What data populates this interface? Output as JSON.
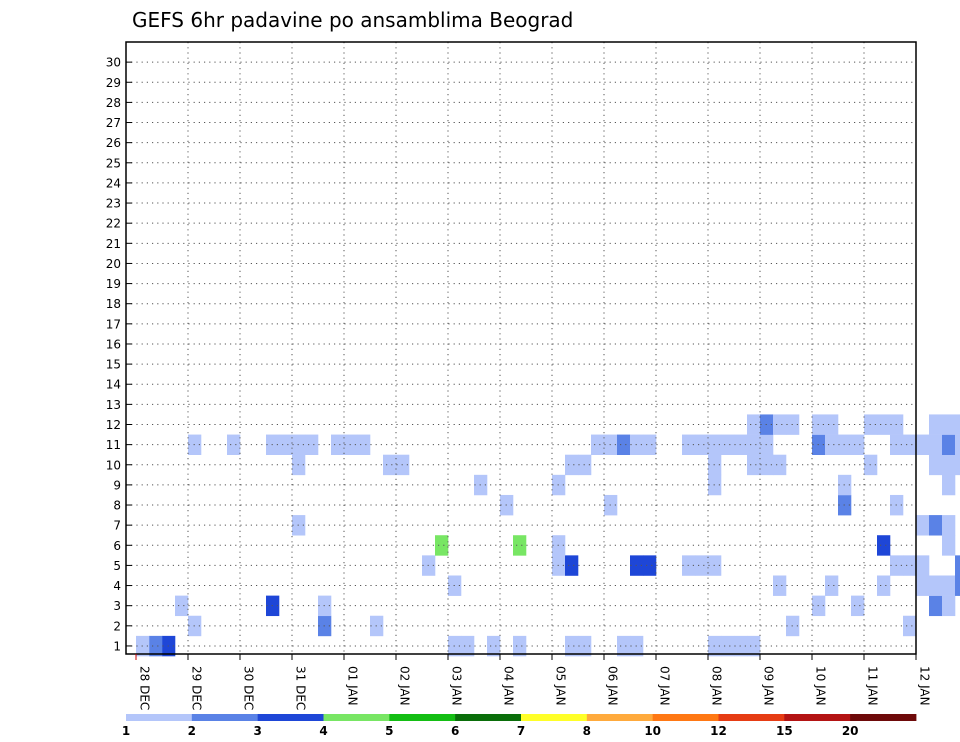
{
  "chart_data": {
    "type": "heatmap",
    "title": "GEFS 6hr padavine po ansamblima Beograd",
    "xlabel": "",
    "ylabel": "",
    "x_tick_labels": [
      "28 DEC",
      "29 DEC",
      "30 DEC",
      "31 DEC",
      "01 JAN",
      "02 JAN",
      "03 JAN",
      "04 JAN",
      "05 JAN",
      "06 JAN",
      "07 JAN",
      "08 JAN",
      "09 JAN",
      "10 JAN",
      "11 JAN",
      "12 JAN"
    ],
    "x_range_days": [
      0,
      15
    ],
    "time_step_hours": 6,
    "y_range": [
      1,
      30
    ],
    "y_tick_labels": [
      "1",
      "2",
      "3",
      "4",
      "5",
      "6",
      "7",
      "8",
      "9",
      "10",
      "11",
      "12",
      "13",
      "14",
      "15",
      "16",
      "17",
      "18",
      "19",
      "20",
      "21",
      "22",
      "23",
      "24",
      "25",
      "26",
      "27",
      "28",
      "29",
      "30"
    ],
    "grid": "dotted",
    "legend": {
      "placement": "bottom",
      "colors": [
        "#b4c6fa",
        "#5a82e6",
        "#1e46d7",
        "#78e664",
        "#14be14",
        "#0a6e0a",
        "#ffff28",
        "#ffaa3c",
        "#ff7814",
        "#e63c14",
        "#b41414",
        "#6e0a0a"
      ],
      "labels": [
        "1",
        "2",
        "3",
        "4",
        "5",
        "6",
        "7",
        "8",
        "10",
        "12",
        "15",
        "20"
      ]
    },
    "cell_category_encoding": "1-based index into legend.colors",
    "cells": [
      [
        1,
        3,
        3
      ],
      [
        1,
        2,
        2
      ],
      [
        1,
        1,
        1
      ],
      [
        1,
        25,
        1
      ],
      [
        1,
        26,
        1
      ],
      [
        1,
        28,
        1
      ],
      [
        1,
        30,
        1
      ],
      [
        1,
        34,
        1
      ],
      [
        1,
        35,
        1
      ],
      [
        1,
        38,
        1
      ],
      [
        1,
        39,
        1
      ],
      [
        1,
        45,
        1
      ],
      [
        1,
        46,
        1
      ],
      [
        1,
        47,
        1
      ],
      [
        1,
        48,
        1
      ],
      [
        2,
        5,
        1
      ],
      [
        2,
        15,
        2
      ],
      [
        2,
        19,
        1
      ],
      [
        2,
        51,
        1
      ],
      [
        2,
        60,
        1
      ],
      [
        2,
        67,
        2
      ],
      [
        2,
        68,
        2
      ],
      [
        2,
        69,
        2
      ],
      [
        2,
        70,
        3
      ],
      [
        2,
        78,
        1
      ],
      [
        2,
        81,
        1
      ],
      [
        3,
        4,
        1
      ],
      [
        3,
        11,
        3
      ],
      [
        3,
        15,
        1
      ],
      [
        3,
        53,
        1
      ],
      [
        3,
        56,
        1
      ],
      [
        3,
        62,
        2
      ],
      [
        3,
        63,
        1
      ],
      [
        3,
        72,
        1
      ],
      [
        3,
        74,
        2
      ],
      [
        3,
        84,
        2
      ],
      [
        3,
        91,
        1
      ],
      [
        3,
        92,
        1
      ],
      [
        3,
        93,
        1
      ],
      [
        3,
        94,
        3
      ],
      [
        3,
        95,
        3
      ],
      [
        3,
        96,
        2
      ],
      [
        3,
        97,
        1
      ],
      [
        3,
        98,
        1
      ],
      [
        4,
        25,
        1
      ],
      [
        4,
        50,
        1
      ],
      [
        4,
        54,
        1
      ],
      [
        4,
        58,
        1
      ],
      [
        4,
        61,
        1
      ],
      [
        4,
        62,
        1
      ],
      [
        4,
        63,
        1
      ],
      [
        4,
        64,
        2
      ],
      [
        4,
        65,
        3
      ],
      [
        4,
        66,
        2
      ],
      [
        4,
        72,
        2
      ],
      [
        4,
        77,
        1
      ],
      [
        4,
        78,
        1
      ],
      [
        4,
        79,
        1
      ],
      [
        4,
        80,
        2
      ],
      [
        4,
        81,
        2
      ],
      [
        4,
        82,
        2
      ],
      [
        4,
        83,
        2
      ],
      [
        4,
        85,
        2
      ],
      [
        4,
        87,
        1
      ],
      [
        4,
        88,
        2
      ],
      [
        4,
        90,
        1
      ],
      [
        5,
        23,
        1
      ],
      [
        5,
        33,
        1
      ],
      [
        5,
        34,
        3
      ],
      [
        5,
        39,
        3
      ],
      [
        5,
        40,
        3
      ],
      [
        5,
        43,
        1
      ],
      [
        5,
        44,
        1
      ],
      [
        5,
        45,
        1
      ],
      [
        5,
        59,
        1
      ],
      [
        5,
        60,
        1
      ],
      [
        5,
        61,
        1
      ],
      [
        5,
        64,
        2
      ],
      [
        5,
        71,
        2
      ],
      [
        5,
        80,
        2
      ],
      [
        6,
        24,
        4
      ],
      [
        6,
        30,
        4
      ],
      [
        6,
        33,
        1
      ],
      [
        6,
        58,
        3
      ],
      [
        6,
        63,
        1
      ],
      [
        6,
        74,
        1
      ],
      [
        6,
        81,
        1
      ],
      [
        6,
        82,
        2
      ],
      [
        6,
        83,
        2
      ],
      [
        6,
        84,
        2
      ],
      [
        6,
        92,
        3
      ],
      [
        6,
        95,
        4
      ],
      [
        6,
        96,
        1
      ],
      [
        6,
        97,
        1
      ],
      [
        6,
        98,
        2
      ],
      [
        7,
        13,
        1
      ],
      [
        7,
        61,
        1
      ],
      [
        7,
        62,
        2
      ],
      [
        7,
        63,
        1
      ],
      [
        7,
        65,
        2
      ],
      [
        7,
        66,
        2
      ],
      [
        7,
        67,
        1
      ],
      [
        7,
        69,
        2
      ],
      [
        7,
        76,
        4
      ],
      [
        7,
        77,
        5
      ],
      [
        7,
        80,
        4
      ],
      [
        7,
        82,
        5
      ],
      [
        7,
        86,
        1
      ],
      [
        7,
        87,
        4
      ],
      [
        7,
        89,
        6
      ],
      [
        7,
        91,
        1
      ],
      [
        7,
        92,
        1
      ],
      [
        7,
        94,
        2
      ],
      [
        7,
        98,
        1
      ],
      [
        7,
        99,
        1
      ],
      [
        8,
        29,
        1
      ],
      [
        8,
        37,
        1
      ],
      [
        8,
        55,
        2
      ],
      [
        8,
        59,
        1
      ],
      [
        8,
        67,
        1
      ],
      [
        8,
        73,
        1
      ],
      [
        8,
        76,
        2
      ],
      [
        8,
        77,
        2
      ],
      [
        8,
        82,
        2
      ],
      [
        8,
        83,
        3
      ],
      [
        8,
        85,
        3
      ],
      [
        8,
        86,
        3
      ],
      [
        8,
        87,
        3
      ],
      [
        8,
        92,
        1
      ],
      [
        8,
        102,
        1
      ],
      [
        8,
        103,
        1
      ],
      [
        8,
        104,
        2
      ],
      [
        8,
        105,
        1
      ],
      [
        9,
        27,
        1
      ],
      [
        9,
        33,
        1
      ],
      [
        9,
        45,
        1
      ],
      [
        9,
        55,
        1
      ],
      [
        9,
        63,
        1
      ],
      [
        9,
        69,
        1
      ],
      [
        9,
        71,
        1
      ],
      [
        9,
        77,
        1
      ],
      [
        9,
        83,
        1
      ],
      [
        9,
        84,
        1
      ],
      [
        9,
        91,
        3
      ],
      [
        9,
        96,
        1
      ],
      [
        9,
        99,
        1
      ],
      [
        9,
        101,
        2
      ],
      [
        9,
        102,
        2
      ],
      [
        9,
        103,
        2
      ],
      [
        9,
        104,
        1
      ],
      [
        10,
        13,
        1
      ],
      [
        10,
        20,
        1
      ],
      [
        10,
        21,
        1
      ],
      [
        10,
        34,
        1
      ],
      [
        10,
        35,
        1
      ],
      [
        10,
        45,
        1
      ],
      [
        10,
        48,
        1
      ],
      [
        10,
        49,
        1
      ],
      [
        10,
        50,
        1
      ],
      [
        10,
        57,
        1
      ],
      [
        10,
        62,
        1
      ],
      [
        10,
        63,
        1
      ],
      [
        10,
        64,
        1
      ],
      [
        10,
        65,
        2
      ],
      [
        10,
        66,
        3
      ],
      [
        10,
        67,
        3
      ],
      [
        10,
        68,
        2
      ],
      [
        11,
        5,
        1
      ],
      [
        11,
        8,
        1
      ],
      [
        11,
        11,
        1
      ],
      [
        11,
        12,
        1
      ],
      [
        11,
        13,
        1
      ],
      [
        11,
        14,
        1
      ],
      [
        11,
        16,
        1
      ],
      [
        11,
        17,
        1
      ],
      [
        11,
        18,
        1
      ],
      [
        11,
        36,
        1
      ],
      [
        11,
        37,
        1
      ],
      [
        11,
        38,
        2
      ],
      [
        11,
        39,
        1
      ],
      [
        11,
        40,
        1
      ],
      [
        11,
        43,
        1
      ],
      [
        11,
        44,
        1
      ],
      [
        11,
        45,
        1
      ],
      [
        11,
        46,
        1
      ],
      [
        11,
        47,
        1
      ],
      [
        11,
        48,
        1
      ],
      [
        11,
        49,
        1
      ],
      [
        11,
        53,
        2
      ],
      [
        11,
        54,
        1
      ],
      [
        11,
        55,
        1
      ],
      [
        11,
        56,
        1
      ],
      [
        11,
        59,
        1
      ],
      [
        11,
        60,
        1
      ],
      [
        11,
        61,
        1
      ],
      [
        11,
        62,
        1
      ],
      [
        11,
        63,
        2
      ],
      [
        11,
        64,
        1
      ],
      [
        11,
        65,
        1
      ],
      [
        11,
        67,
        1
      ],
      [
        11,
        68,
        2
      ],
      [
        11,
        69,
        2
      ],
      [
        11,
        70,
        2
      ],
      [
        11,
        71,
        1
      ],
      [
        11,
        72,
        2
      ],
      [
        11,
        75,
        1
      ],
      [
        11,
        76,
        1
      ],
      [
        11,
        79,
        1
      ],
      [
        11,
        80,
        1
      ],
      [
        11,
        81,
        1
      ],
      [
        11,
        82,
        2
      ],
      [
        11,
        83,
        1
      ],
      [
        11,
        84,
        1
      ],
      [
        11,
        85,
        1
      ],
      [
        11,
        89,
        1
      ],
      [
        11,
        90,
        1
      ],
      [
        11,
        91,
        1
      ],
      [
        11,
        92,
        1
      ],
      [
        11,
        93,
        3
      ],
      [
        11,
        94,
        2
      ],
      [
        11,
        95,
        1
      ],
      [
        11,
        96,
        1
      ],
      [
        11,
        97,
        1
      ],
      [
        11,
        98,
        1
      ],
      [
        11,
        102,
        1
      ],
      [
        11,
        103,
        1
      ],
      [
        11,
        104,
        2
      ],
      [
        11,
        105,
        1
      ],
      [
        11,
        106,
        1
      ],
      [
        12,
        48,
        1
      ],
      [
        12,
        49,
        2
      ],
      [
        12,
        50,
        1
      ],
      [
        12,
        51,
        1
      ],
      [
        12,
        53,
        1
      ],
      [
        12,
        54,
        1
      ],
      [
        12,
        57,
        1
      ],
      [
        12,
        58,
        1
      ],
      [
        12,
        59,
        1
      ],
      [
        12,
        62,
        1
      ],
      [
        12,
        63,
        1
      ],
      [
        12,
        64,
        1
      ],
      [
        12,
        66,
        1
      ],
      [
        12,
        67,
        1
      ],
      [
        12,
        70,
        1
      ],
      [
        12,
        72,
        1
      ],
      [
        12,
        73,
        1
      ],
      [
        12,
        74,
        1
      ],
      [
        12,
        75,
        1
      ],
      [
        12,
        76,
        1
      ],
      [
        12,
        77,
        1
      ],
      [
        12,
        79,
        1
      ],
      [
        12,
        80,
        1
      ],
      [
        12,
        83,
        2
      ],
      [
        12,
        85,
        1
      ],
      [
        12,
        86,
        1
      ],
      [
        12,
        87,
        1
      ],
      [
        12,
        88,
        1
      ],
      [
        12,
        90,
        1
      ],
      [
        12,
        93,
        1
      ],
      [
        12,
        96,
        1
      ],
      [
        12,
        100,
        1
      ],
      [
        12,
        101,
        1
      ]
    ]
  }
}
